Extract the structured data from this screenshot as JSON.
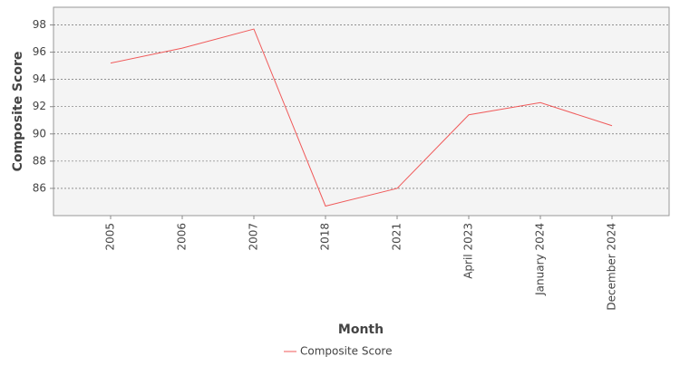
{
  "chart_data": {
    "type": "line",
    "x_label": "Month",
    "y_label": "Composite Score",
    "categories": [
      "2005",
      "2006",
      "2007",
      "2018",
      "2021",
      "April 2023",
      "January 2024",
      "December 2024"
    ],
    "series": [
      {
        "name": "Composite Score",
        "color": "#f05a5a",
        "values": [
          95.2,
          96.3,
          97.7,
          84.7,
          86.0,
          91.4,
          92.3,
          90.6
        ]
      }
    ],
    "ylim": [
      84,
      99.3
    ],
    "yticks": [
      86,
      88,
      90,
      92,
      94,
      96,
      98
    ],
    "grid": true,
    "legend": "bottom"
  }
}
